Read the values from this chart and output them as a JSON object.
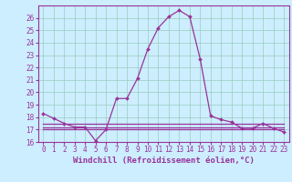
{
  "xlabel": "Windchill (Refroidissement éolien,°C)",
  "bg_color": "#cceeff",
  "line_color": "#993399",
  "x": [
    0,
    1,
    2,
    3,
    4,
    5,
    6,
    7,
    8,
    9,
    10,
    11,
    12,
    13,
    14,
    15,
    16,
    17,
    18,
    19,
    20,
    21,
    22,
    23
  ],
  "y_main": [
    18.3,
    17.9,
    17.5,
    17.2,
    17.2,
    16.1,
    17.0,
    19.5,
    19.5,
    21.1,
    23.5,
    25.2,
    26.1,
    26.6,
    26.1,
    22.7,
    18.1,
    17.8,
    17.6,
    17.1,
    17.1,
    17.5,
    17.1,
    16.8
  ],
  "y_flat1": [
    17.5,
    17.5,
    17.5,
    17.5,
    17.5,
    17.5,
    17.5,
    17.5,
    17.5,
    17.5,
    17.5,
    17.5,
    17.5,
    17.5,
    17.5,
    17.5,
    17.5,
    17.5,
    17.5,
    17.5,
    17.5,
    17.5,
    17.5,
    17.5
  ],
  "y_flat2": [
    17.2,
    17.2,
    17.2,
    17.2,
    17.2,
    17.2,
    17.2,
    17.2,
    17.2,
    17.2,
    17.2,
    17.2,
    17.2,
    17.2,
    17.2,
    17.2,
    17.2,
    17.2,
    17.2,
    17.2,
    17.2,
    17.2,
    17.2,
    17.2
  ],
  "y_flat3": [
    17.0,
    17.0,
    17.0,
    17.0,
    17.0,
    17.0,
    17.0,
    17.0,
    17.0,
    17.0,
    17.0,
    17.0,
    17.0,
    17.0,
    17.0,
    17.0,
    17.0,
    17.0,
    17.0,
    17.0,
    17.0,
    17.0,
    17.0,
    17.0
  ],
  "ylim": [
    16,
    27
  ],
  "xlim": [
    -0.5,
    23.5
  ],
  "yticks": [
    16,
    17,
    18,
    19,
    20,
    21,
    22,
    23,
    24,
    25,
    26
  ],
  "xticks": [
    0,
    1,
    2,
    3,
    4,
    5,
    6,
    7,
    8,
    9,
    10,
    11,
    12,
    13,
    14,
    15,
    16,
    17,
    18,
    19,
    20,
    21,
    22,
    23
  ],
  "grid_color": "#99ccbb",
  "marker": "D",
  "markersize": 2.0,
  "linewidth": 0.9,
  "tick_fontsize": 5.5,
  "label_fontsize": 6.5
}
